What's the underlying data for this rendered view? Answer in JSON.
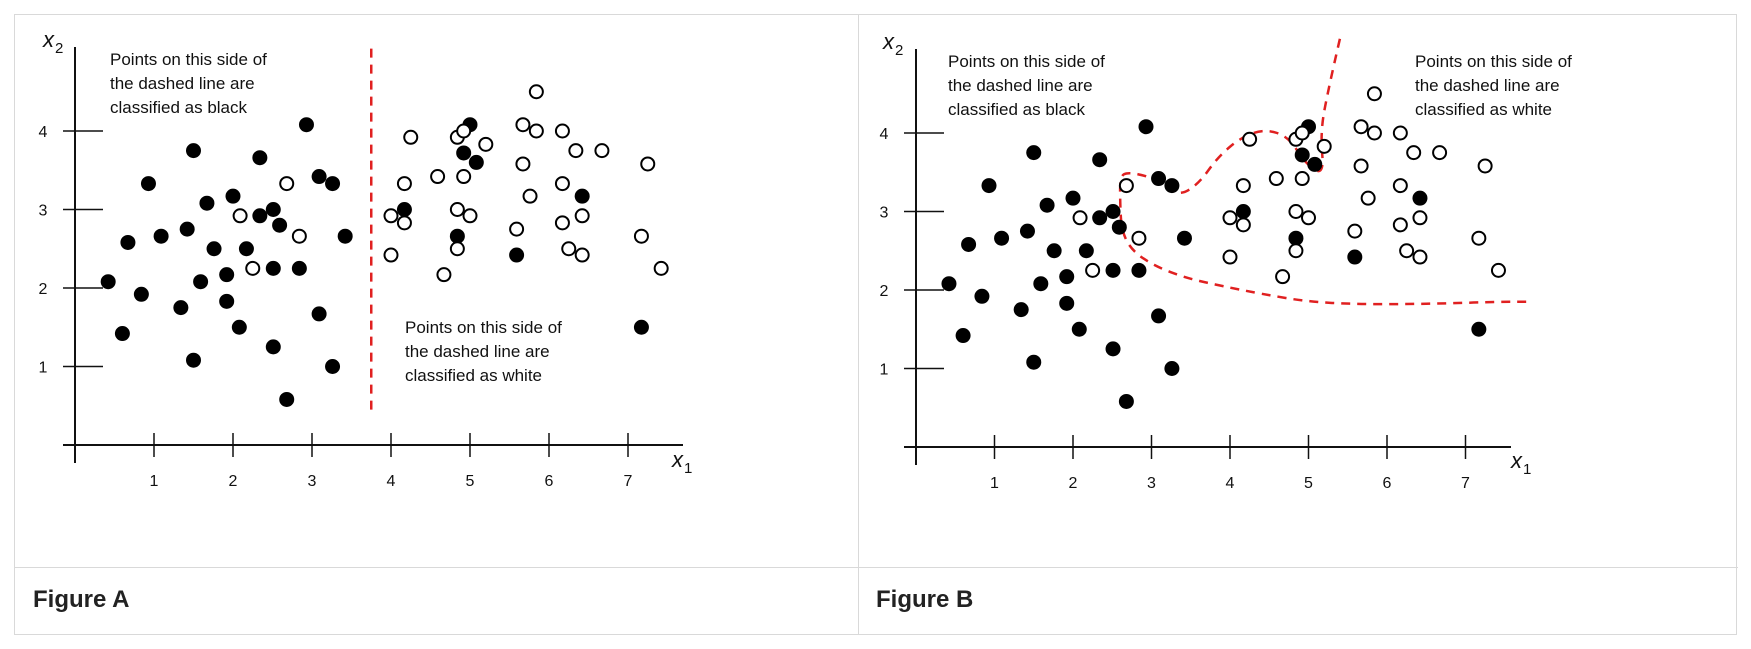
{
  "chart_data": [
    {
      "type": "scatter",
      "caption": "Figure A",
      "xlabel": "x",
      "xlabel_sub": "1",
      "ylabel": "x",
      "ylabel_sub": "2",
      "xticks": [
        "1",
        "2",
        "3",
        "4",
        "5",
        "6",
        "7"
      ],
      "yticks": [
        "1",
        "2",
        "3",
        "4"
      ],
      "boundary": "vertical dashed line at x1 ≈ 3.75",
      "boundary_color": "#e02020",
      "annotations": [
        {
          "lines": [
            "Points on this side of",
            "the dashed line are",
            "classified as black"
          ]
        },
        {
          "lines": [
            "Points on this side of",
            "the dashed line are",
            "classified as white"
          ]
        }
      ],
      "series": [
        {
          "name": "black",
          "color": "#000000",
          "filled": true,
          "points": [
            [
              0.42,
              2.08
            ],
            [
              0.6,
              1.42
            ],
            [
              0.67,
              2.58
            ],
            [
              0.84,
              1.92
            ],
            [
              0.93,
              3.33
            ],
            [
              1.09,
              2.66
            ],
            [
              1.34,
              1.75
            ],
            [
              1.42,
              2.75
            ],
            [
              1.5,
              3.75
            ],
            [
              1.5,
              1.08
            ],
            [
              1.59,
              2.08
            ],
            [
              1.67,
              3.08
            ],
            [
              1.76,
              2.5
            ],
            [
              1.92,
              2.17
            ],
            [
              1.92,
              1.83
            ],
            [
              2.0,
              3.17
            ],
            [
              2.08,
              1.5
            ],
            [
              2.17,
              2.5
            ],
            [
              2.34,
              3.66
            ],
            [
              2.34,
              2.92
            ],
            [
              2.51,
              3.0
            ],
            [
              2.51,
              2.25
            ],
            [
              2.51,
              1.25
            ],
            [
              2.59,
              2.8
            ],
            [
              2.68,
              0.58
            ],
            [
              2.84,
              2.25
            ],
            [
              2.93,
              4.08
            ],
            [
              3.09,
              3.42
            ],
            [
              3.09,
              1.67
            ],
            [
              3.26,
              3.33
            ],
            [
              3.26,
              1.0
            ],
            [
              3.42,
              2.66
            ],
            [
              4.17,
              3.0
            ],
            [
              4.84,
              2.66
            ],
            [
              4.92,
              3.72
            ],
            [
              5.0,
              4.08
            ],
            [
              5.08,
              3.6
            ],
            [
              5.59,
              2.42
            ],
            [
              6.42,
              3.17
            ],
            [
              7.17,
              1.5
            ]
          ]
        },
        {
          "name": "white",
          "color": "#000000",
          "filled": false,
          "points": [
            [
              2.09,
              2.92
            ],
            [
              2.25,
              2.25
            ],
            [
              2.68,
              3.33
            ],
            [
              2.84,
              2.66
            ],
            [
              4.0,
              2.92
            ],
            [
              4.0,
              2.42
            ],
            [
              4.17,
              3.33
            ],
            [
              4.17,
              2.83
            ],
            [
              4.25,
              3.92
            ],
            [
              4.59,
              3.42
            ],
            [
              4.67,
              2.17
            ],
            [
              4.84,
              3.92
            ],
            [
              4.84,
              3.0
            ],
            [
              4.84,
              2.5
            ],
            [
              4.92,
              4.0
            ],
            [
              4.92,
              3.42
            ],
            [
              5.0,
              2.92
            ],
            [
              5.2,
              3.83
            ],
            [
              5.59,
              2.75
            ],
            [
              5.67,
              4.08
            ],
            [
              5.67,
              3.58
            ],
            [
              5.76,
              3.17
            ],
            [
              5.84,
              4.5
            ],
            [
              5.84,
              4.0
            ],
            [
              6.17,
              4.0
            ],
            [
              6.17,
              3.33
            ],
            [
              6.17,
              2.83
            ],
            [
              6.25,
              2.5
            ],
            [
              6.34,
              3.75
            ],
            [
              6.42,
              2.92
            ],
            [
              6.42,
              2.42
            ],
            [
              6.67,
              3.75
            ],
            [
              7.17,
              2.66
            ],
            [
              7.25,
              3.58
            ],
            [
              7.42,
              2.25
            ]
          ]
        }
      ]
    },
    {
      "type": "scatter",
      "caption": "Figure B",
      "xlabel": "x",
      "xlabel_sub": "1",
      "ylabel": "x",
      "ylabel_sub": "2",
      "xticks": [
        "1",
        "2",
        "3",
        "4",
        "5",
        "6",
        "7"
      ],
      "yticks": [
        "1",
        "2",
        "3",
        "4"
      ],
      "boundary": "curved dashed line separating classes",
      "boundary_color": "#e02020",
      "annotations": [
        {
          "lines": [
            "Points on this side of",
            "the dashed line are",
            "classified as black"
          ]
        },
        {
          "lines": [
            "Points on this side of",
            "the dashed line are",
            "classified as white"
          ]
        }
      ],
      "series": [
        {
          "name": "black",
          "color": "#000000",
          "filled": true,
          "points": [
            [
              0.42,
              2.08
            ],
            [
              0.6,
              1.42
            ],
            [
              0.67,
              2.58
            ],
            [
              0.84,
              1.92
            ],
            [
              0.93,
              3.33
            ],
            [
              1.09,
              2.66
            ],
            [
              1.34,
              1.75
            ],
            [
              1.42,
              2.75
            ],
            [
              1.5,
              3.75
            ],
            [
              1.5,
              1.08
            ],
            [
              1.59,
              2.08
            ],
            [
              1.67,
              3.08
            ],
            [
              1.76,
              2.5
            ],
            [
              1.92,
              2.17
            ],
            [
              1.92,
              1.83
            ],
            [
              2.0,
              3.17
            ],
            [
              2.08,
              1.5
            ],
            [
              2.17,
              2.5
            ],
            [
              2.34,
              3.66
            ],
            [
              2.34,
              2.92
            ],
            [
              2.51,
              3.0
            ],
            [
              2.51,
              2.25
            ],
            [
              2.51,
              1.25
            ],
            [
              2.59,
              2.8
            ],
            [
              2.68,
              0.58
            ],
            [
              2.84,
              2.25
            ],
            [
              2.93,
              4.08
            ],
            [
              3.09,
              3.42
            ],
            [
              3.09,
              1.67
            ],
            [
              3.26,
              3.33
            ],
            [
              3.26,
              1.0
            ],
            [
              3.42,
              2.66
            ],
            [
              4.17,
              3.0
            ],
            [
              4.84,
              2.66
            ],
            [
              4.92,
              3.72
            ],
            [
              5.0,
              4.08
            ],
            [
              5.08,
              3.6
            ],
            [
              5.59,
              2.42
            ],
            [
              6.42,
              3.17
            ],
            [
              7.17,
              1.5
            ]
          ]
        },
        {
          "name": "white",
          "color": "#000000",
          "filled": false,
          "points": [
            [
              2.09,
              2.92
            ],
            [
              2.25,
              2.25
            ],
            [
              2.68,
              3.33
            ],
            [
              2.84,
              2.66
            ],
            [
              4.0,
              2.92
            ],
            [
              4.0,
              2.42
            ],
            [
              4.17,
              3.33
            ],
            [
              4.17,
              2.83
            ],
            [
              4.25,
              3.92
            ],
            [
              4.59,
              3.42
            ],
            [
              4.67,
              2.17
            ],
            [
              4.84,
              3.92
            ],
            [
              4.84,
              3.0
            ],
            [
              4.84,
              2.5
            ],
            [
              4.92,
              4.0
            ],
            [
              4.92,
              3.42
            ],
            [
              5.0,
              2.92
            ],
            [
              5.2,
              3.83
            ],
            [
              5.59,
              2.75
            ],
            [
              5.67,
              4.08
            ],
            [
              5.67,
              3.58
            ],
            [
              5.76,
              3.17
            ],
            [
              5.84,
              4.5
            ],
            [
              5.84,
              4.0
            ],
            [
              6.17,
              4.0
            ],
            [
              6.17,
              3.33
            ],
            [
              6.17,
              2.83
            ],
            [
              6.25,
              2.5
            ],
            [
              6.34,
              3.75
            ],
            [
              6.42,
              2.92
            ],
            [
              6.42,
              2.42
            ],
            [
              6.67,
              3.75
            ],
            [
              7.17,
              2.66
            ],
            [
              7.25,
              3.58
            ],
            [
              7.42,
              2.25
            ]
          ]
        }
      ]
    }
  ]
}
